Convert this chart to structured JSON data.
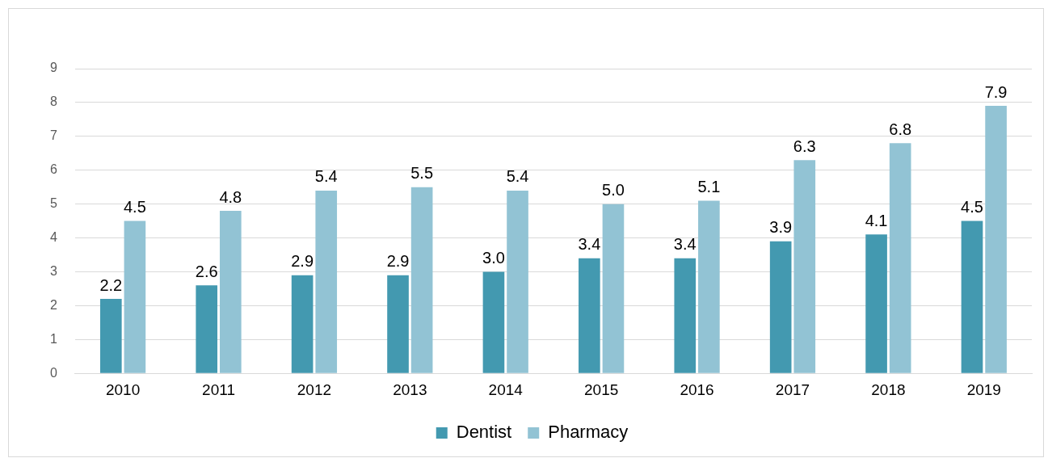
{
  "chart_data": {
    "type": "bar",
    "categories": [
      "2010",
      "2011",
      "2012",
      "2013",
      "2014",
      "2015",
      "2016",
      "2017",
      "2018",
      "2019"
    ],
    "series": [
      {
        "name": "Dentist",
        "color": "#4399b0",
        "values": [
          2.2,
          2.6,
          2.9,
          2.9,
          3.0,
          3.4,
          3.4,
          3.9,
          4.1,
          4.5
        ],
        "value_labels": [
          "2.2",
          "2.6",
          "2.9",
          "2.9",
          "3.0",
          "3.4",
          "3.4",
          "3.9",
          "4.1",
          "4.5"
        ]
      },
      {
        "name": "Pharmacy",
        "color": "#92c3d4",
        "values": [
          4.5,
          4.8,
          5.4,
          5.5,
          5.4,
          5.0,
          5.1,
          6.3,
          6.8,
          7.9
        ],
        "value_labels": [
          "4.5",
          "4.8",
          "5.4",
          "5.5",
          "5.4",
          "5.0",
          "5.1",
          "6.3",
          "6.8",
          "7.9"
        ]
      }
    ],
    "ylim": [
      0,
      9
    ],
    "yticks": [
      0,
      1,
      2,
      3,
      4,
      5,
      6,
      7,
      8,
      9
    ],
    "grid": "y",
    "legend": "bottom"
  }
}
